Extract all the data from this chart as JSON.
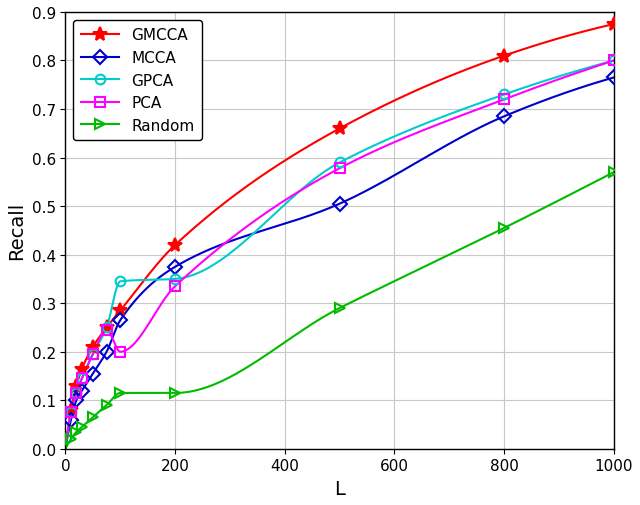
{
  "key_points": {
    "GMCCA": {
      "x": [
        0,
        10,
        20,
        30,
        50,
        75,
        100,
        200,
        500,
        800,
        1000
      ],
      "y": [
        0.0,
        0.08,
        0.13,
        0.165,
        0.21,
        0.25,
        0.285,
        0.42,
        0.66,
        0.81,
        0.875
      ]
    },
    "MCCA": {
      "x": [
        0,
        10,
        20,
        30,
        50,
        75,
        100,
        200,
        500,
        800,
        1000
      ],
      "y": [
        0.0,
        0.06,
        0.1,
        0.12,
        0.155,
        0.2,
        0.265,
        0.375,
        0.505,
        0.685,
        0.765
      ]
    },
    "GPCA": {
      "x": [
        0,
        10,
        20,
        30,
        50,
        75,
        100,
        200,
        500,
        800,
        1000
      ],
      "y": [
        0.0,
        0.075,
        0.115,
        0.145,
        0.195,
        0.25,
        0.345,
        0.35,
        0.59,
        0.73,
        0.8
      ]
    },
    "PCA": {
      "x": [
        0,
        10,
        20,
        30,
        50,
        75,
        100,
        200,
        500,
        800,
        1000
      ],
      "y": [
        0.0,
        0.075,
        0.115,
        0.145,
        0.195,
        0.245,
        0.2,
        0.335,
        0.578,
        0.72,
        0.8
      ]
    },
    "Random": {
      "x": [
        0,
        10,
        20,
        30,
        50,
        75,
        100,
        200,
        500,
        800,
        1000
      ],
      "y": [
        0.0,
        0.02,
        0.035,
        0.045,
        0.065,
        0.09,
        0.115,
        0.115,
        0.29,
        0.455,
        0.57
      ]
    }
  },
  "marker_points": {
    "GMCCA": {
      "x": [
        10,
        20,
        30,
        50,
        75,
        100,
        200,
        500,
        800,
        1000
      ],
      "y": [
        0.08,
        0.13,
        0.165,
        0.21,
        0.25,
        0.285,
        0.42,
        0.66,
        0.81,
        0.875
      ]
    },
    "MCCA": {
      "x": [
        10,
        20,
        30,
        50,
        75,
        100,
        200,
        500,
        800,
        1000
      ],
      "y": [
        0.06,
        0.1,
        0.12,
        0.155,
        0.2,
        0.265,
        0.375,
        0.505,
        0.685,
        0.765
      ]
    },
    "GPCA": {
      "x": [
        10,
        20,
        30,
        50,
        75,
        100,
        200,
        500,
        800,
        1000
      ],
      "y": [
        0.075,
        0.115,
        0.145,
        0.195,
        0.25,
        0.345,
        0.35,
        0.59,
        0.73,
        0.8
      ]
    },
    "PCA": {
      "x": [
        10,
        20,
        30,
        50,
        75,
        100,
        200,
        500,
        800,
        1000
      ],
      "y": [
        0.075,
        0.115,
        0.145,
        0.195,
        0.245,
        0.2,
        0.335,
        0.578,
        0.72,
        0.8
      ]
    },
    "Random": {
      "x": [
        10,
        20,
        30,
        50,
        75,
        100,
        200,
        500,
        800,
        1000
      ],
      "y": [
        0.02,
        0.035,
        0.045,
        0.065,
        0.09,
        0.115,
        0.115,
        0.29,
        0.455,
        0.57
      ]
    }
  },
  "styles": {
    "GMCCA": {
      "color": "#ff0000",
      "marker": "*",
      "markersize": 10,
      "markerfacecolor": "#ff0000",
      "linewidth": 1.5
    },
    "MCCA": {
      "color": "#0000cc",
      "marker": "D",
      "markersize": 7,
      "markerfacecolor": "none",
      "linewidth": 1.5
    },
    "GPCA": {
      "color": "#00cccc",
      "marker": "o",
      "markersize": 7,
      "markerfacecolor": "none",
      "linewidth": 1.5
    },
    "PCA": {
      "color": "#ff00ff",
      "marker": "s",
      "markersize": 7,
      "markerfacecolor": "none",
      "linewidth": 1.5
    },
    "Random": {
      "color": "#00bb00",
      "marker": ">",
      "markersize": 7,
      "markerfacecolor": "none",
      "linewidth": 1.5
    }
  },
  "legend_order": [
    "GMCCA",
    "MCCA",
    "GPCA",
    "PCA",
    "Random"
  ],
  "xlabel": "L",
  "ylabel": "Recall",
  "xlim": [
    0,
    1000
  ],
  "ylim": [
    0,
    0.9
  ],
  "xticks": [
    0,
    200,
    400,
    600,
    800,
    1000
  ],
  "yticks": [
    0.0,
    0.1,
    0.2,
    0.3,
    0.4,
    0.5,
    0.6,
    0.7,
    0.8,
    0.9
  ]
}
